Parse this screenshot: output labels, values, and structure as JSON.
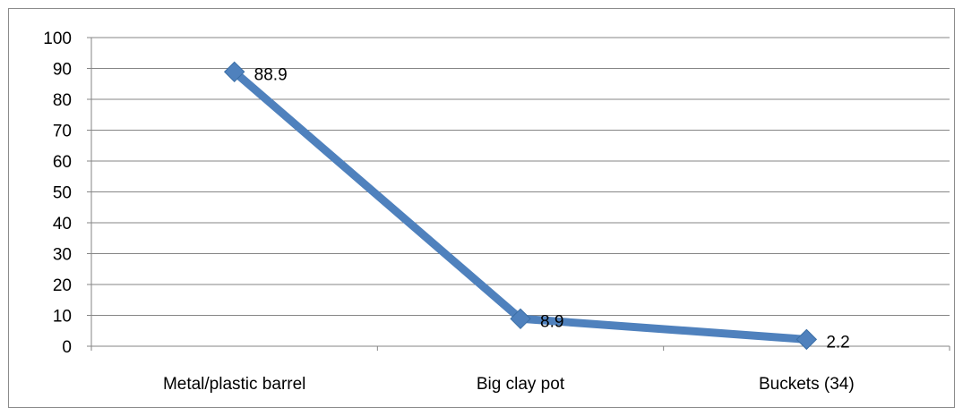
{
  "chart_data": {
    "type": "line",
    "categories": [
      "Metal/plastic barrel",
      "Big clay pot",
      "Buckets (34)"
    ],
    "series": [
      {
        "values": [
          88.9,
          8.9,
          2.2
        ],
        "data_labels": [
          "88.9",
          "8.9",
          "2.2"
        ],
        "color": "#4f81bd",
        "marker": "diamond"
      }
    ],
    "title": "",
    "xlabel": "",
    "ylabel": "",
    "ylim": [
      0,
      100
    ],
    "yticks": [
      0,
      10,
      20,
      30,
      40,
      50,
      60,
      70,
      80,
      90,
      100
    ],
    "ytick_labels": [
      "0",
      "10",
      "20",
      "30",
      "40",
      "50",
      "60",
      "70",
      "80",
      "90",
      "100"
    ],
    "grid": true,
    "legend": "none"
  }
}
